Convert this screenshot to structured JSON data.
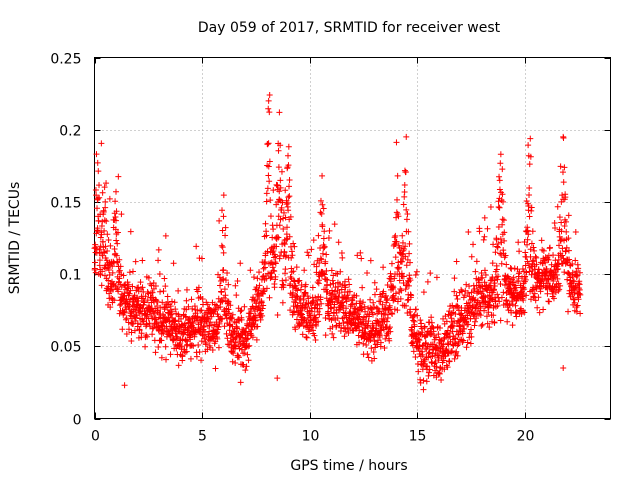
{
  "chart_data": {
    "type": "scatter",
    "title": "Day 059 of 2017, SRMTID for receiver west",
    "xlabel": "GPS time / hours",
    "ylabel": "SRMTID / TECUs",
    "xlim": [
      0,
      24
    ],
    "ylim": [
      0,
      0.25
    ],
    "x_ticks": [
      0,
      5,
      10,
      15,
      20
    ],
    "x_tick_labels": [
      "0",
      "5",
      "10",
      "15",
      "20"
    ],
    "y_ticks": [
      0,
      0.05,
      0.1,
      0.15,
      0.2,
      0.25
    ],
    "y_tick_labels": [
      "0",
      "0.05",
      "0.1",
      "0.15",
      "0.2",
      "0.25"
    ],
    "grid": true,
    "marker": "+",
    "color": "#ff0000",
    "series": [
      {
        "name": "SRMTID",
        "x_range": [
          0,
          22.6
        ],
        "sample_interval_hours": 0.0084,
        "baseline_profile": [
          [
            0,
            0.09
          ],
          [
            1,
            0.085
          ],
          [
            2,
            0.075
          ],
          [
            3,
            0.07
          ],
          [
            4,
            0.06
          ],
          [
            5,
            0.065
          ],
          [
            6,
            0.06
          ],
          [
            7,
            0.055
          ],
          [
            8,
            0.09
          ],
          [
            9,
            0.085
          ],
          [
            10,
            0.07
          ],
          [
            11,
            0.08
          ],
          [
            12,
            0.075
          ],
          [
            13,
            0.06
          ],
          [
            14,
            0.085
          ],
          [
            15,
            0.05
          ],
          [
            16,
            0.045
          ],
          [
            17,
            0.065
          ],
          [
            18,
            0.085
          ],
          [
            19,
            0.085
          ],
          [
            20,
            0.085
          ],
          [
            21,
            0.1
          ],
          [
            22,
            0.09
          ],
          [
            22.6,
            0.09
          ]
        ],
        "peaks": [
          {
            "x": 0.15,
            "y": 0.177
          },
          {
            "x": 0.5,
            "y": 0.15
          },
          {
            "x": 1.0,
            "y": 0.157
          },
          {
            "x": 6.0,
            "y": 0.14
          },
          {
            "x": 8.1,
            "y": 0.22
          },
          {
            "x": 8.6,
            "y": 0.212
          },
          {
            "x": 9.0,
            "y": 0.182
          },
          {
            "x": 10.6,
            "y": 0.148
          },
          {
            "x": 14.1,
            "y": 0.168
          },
          {
            "x": 14.5,
            "y": 0.195
          },
          {
            "x": 18.9,
            "y": 0.183
          },
          {
            "x": 20.2,
            "y": 0.182
          },
          {
            "x": 21.8,
            "y": 0.195
          }
        ],
        "low_points": [
          {
            "x": 1.4,
            "y": 0.023
          },
          {
            "x": 6.8,
            "y": 0.025
          },
          {
            "x": 8.5,
            "y": 0.028
          },
          {
            "x": 15.3,
            "y": 0.02
          },
          {
            "x": 21.8,
            "y": 0.035
          }
        ]
      }
    ]
  }
}
